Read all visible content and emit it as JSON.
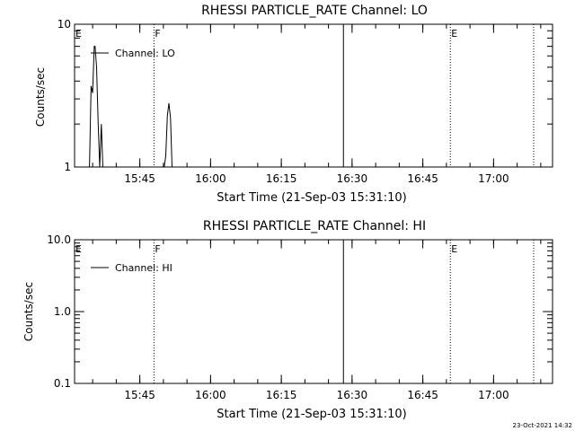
{
  "chart_data": [
    {
      "type": "line",
      "title": "RHESSI PARTICLE_RATE Channel: LO",
      "xlabel": "Start Time (21-Sep-03 15:31:10)",
      "ylabel": "Counts/sec",
      "yscale": "log",
      "ylim": [
        1,
        10
      ],
      "xlim": [
        "15:31:10",
        "17:12:30"
      ],
      "ytick_labels": [
        "1",
        "10"
      ],
      "xtick_labels": [
        "15:45",
        "16:00",
        "16:15",
        "16:30",
        "16:45",
        "17:00"
      ],
      "legend": {
        "position": "top-left",
        "entries": [
          "Channel: LO"
        ]
      },
      "grid": false,
      "markers": [
        {
          "label": "E",
          "time": "15:31:10",
          "style": "none"
        },
        {
          "label": "F",
          "time": "15:48:00",
          "style": "dotted"
        },
        {
          "label": "",
          "time": "16:28:10",
          "style": "solid"
        },
        {
          "label": "E",
          "time": "16:50:50",
          "style": "dotted"
        },
        {
          "label": "",
          "time": "17:08:30",
          "style": "dotted"
        }
      ],
      "series": [
        {
          "x": [
            "15:34:20",
            "15:34:40",
            "15:35:00",
            "15:35:20",
            "15:35:30",
            "15:35:50",
            "15:36:10",
            "15:36:30",
            "15:36:50",
            "15:37:10",
            "15:37:30",
            "15:37:40",
            "15:37:50",
            "15:38:10"
          ],
          "y": [
            1.0,
            3.7,
            3.3,
            7.0,
            7.0,
            5.0,
            2.0,
            1.0,
            2.0,
            1.0,
            1.0,
            1.0,
            1.0,
            1.0
          ]
        },
        {
          "x": [
            "15:50:10",
            "15:50:30",
            "15:50:50",
            "15:51:10",
            "15:51:30",
            "15:51:50",
            "15:52:10"
          ],
          "y": [
            1.0,
            1.2,
            2.3,
            2.8,
            2.2,
            1.0,
            1.0
          ]
        }
      ]
    },
    {
      "type": "line",
      "title": "RHESSI PARTICLE_RATE Channel: HI",
      "xlabel": "Start Time (21-Sep-03 15:31:10)",
      "ylabel": "Counts/sec",
      "yscale": "log",
      "ylim": [
        0.1,
        10
      ],
      "xlim": [
        "15:31:10",
        "17:12:30"
      ],
      "ytick_labels": [
        "0.1",
        "1.0",
        "10.0"
      ],
      "xtick_labels": [
        "15:45",
        "16:00",
        "16:15",
        "16:30",
        "16:45",
        "17:00"
      ],
      "legend": {
        "position": "top-left",
        "entries": [
          "Channel: HI"
        ]
      },
      "grid": false,
      "markers": [
        {
          "label": "E",
          "time": "15:31:10",
          "style": "none"
        },
        {
          "label": "F",
          "time": "15:48:00",
          "style": "dotted"
        },
        {
          "label": "",
          "time": "16:28:10",
          "style": "solid"
        },
        {
          "label": "E",
          "time": "16:50:50",
          "style": "dotted"
        },
        {
          "label": "",
          "time": "17:08:30",
          "style": "dotted"
        }
      ],
      "series": []
    }
  ],
  "footer": {
    "timestamp": "23-Oct-2021 14:32"
  }
}
